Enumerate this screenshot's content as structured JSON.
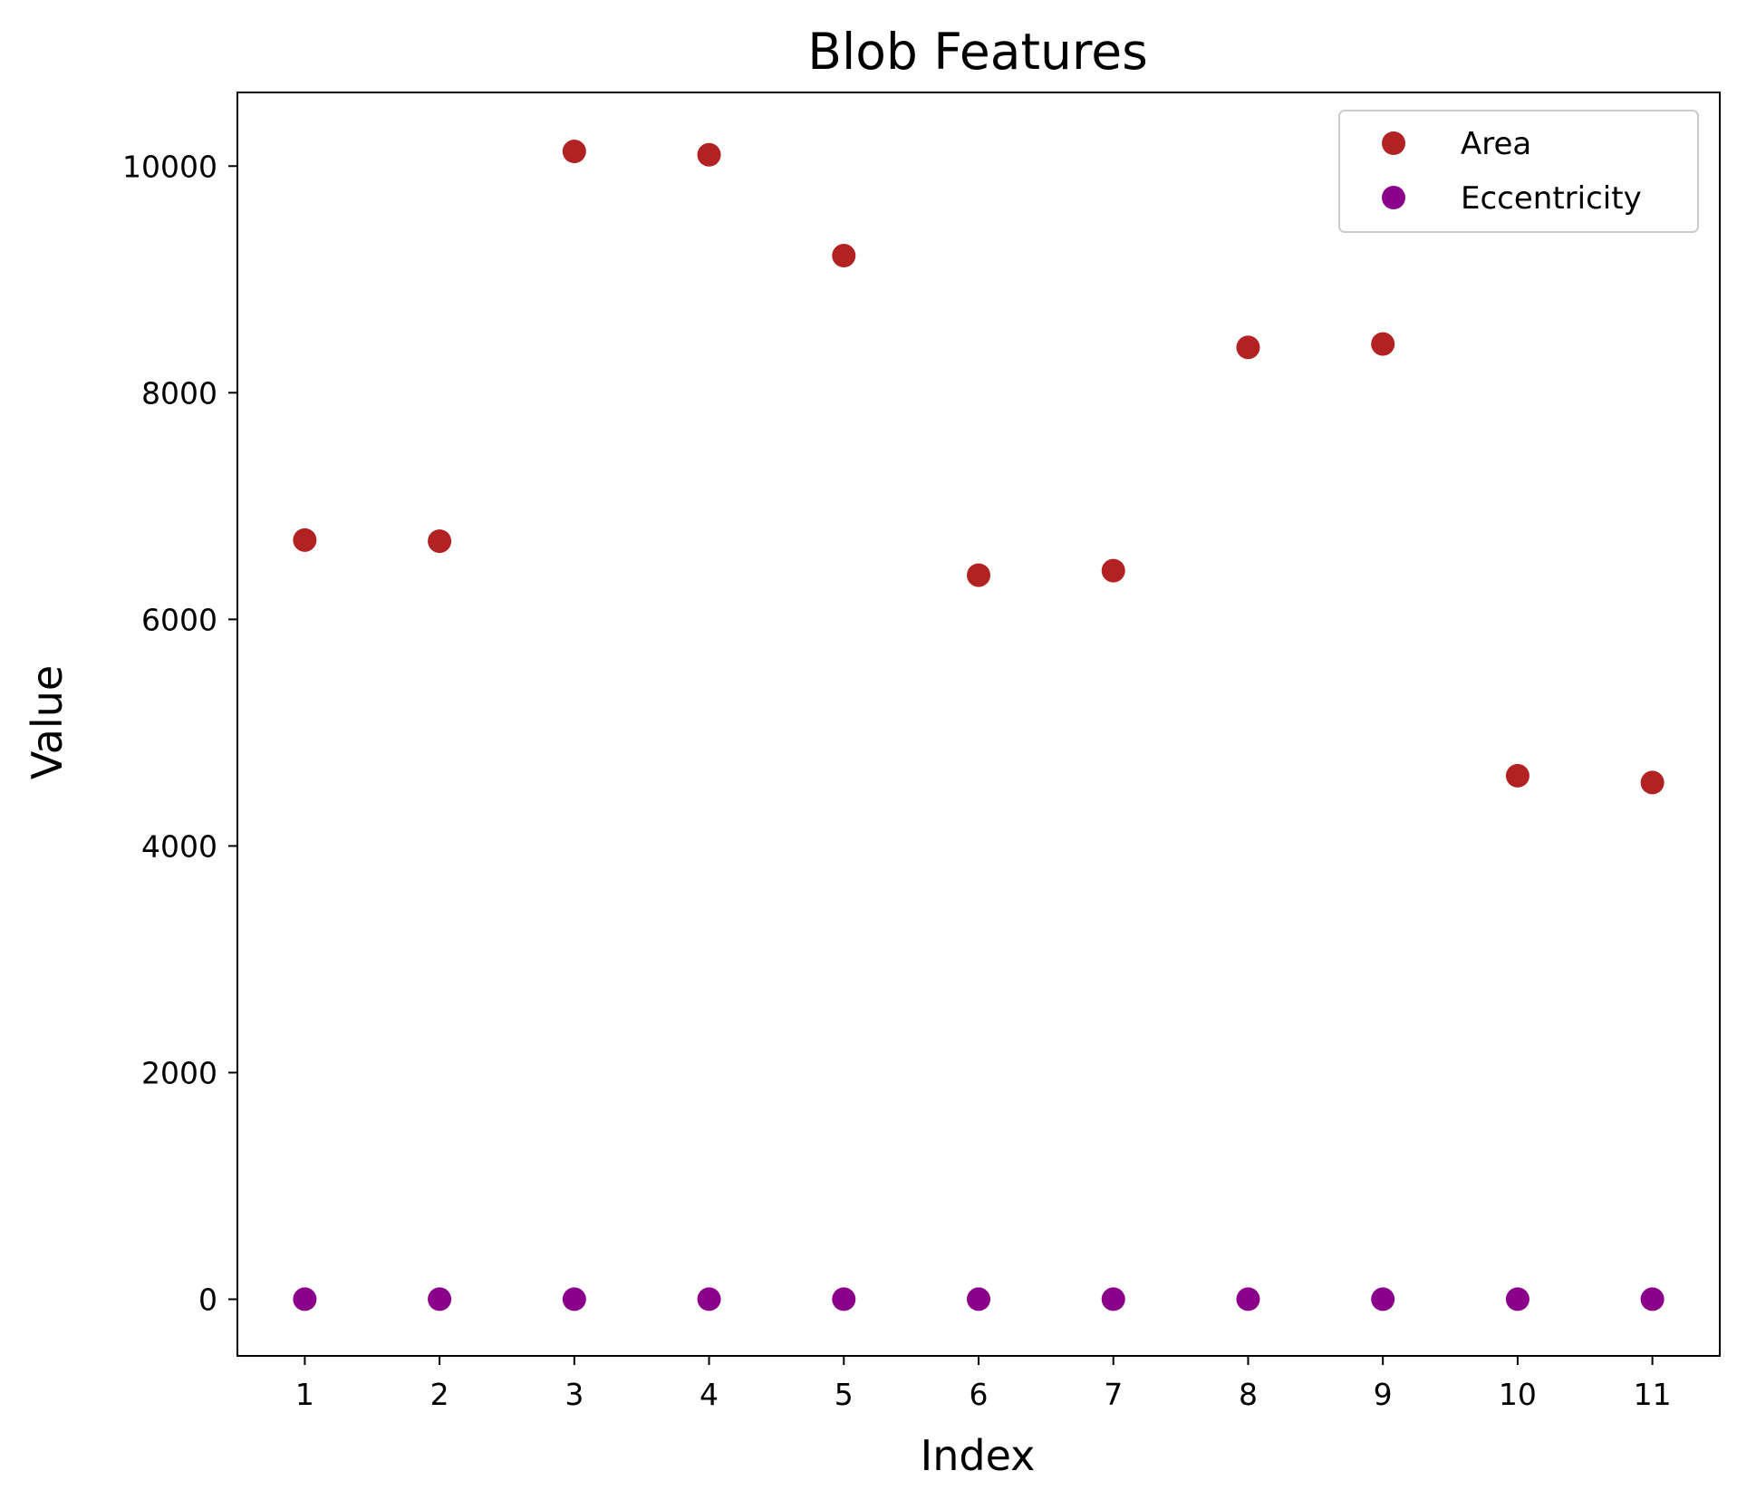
{
  "chart_data": {
    "type": "scatter",
    "title": "Blob Features",
    "xlabel": "Index",
    "ylabel": "Value",
    "x": [
      1,
      2,
      3,
      4,
      5,
      6,
      7,
      8,
      9,
      10,
      11
    ],
    "xticks": [
      1,
      2,
      3,
      4,
      5,
      6,
      7,
      8,
      9,
      10,
      11
    ],
    "yticks": [
      0,
      2000,
      4000,
      6000,
      8000,
      10000
    ],
    "xlim": [
      0.5,
      11.5
    ],
    "ylim": [
      -500,
      10650
    ],
    "grid": false,
    "legend_position": "top-right",
    "series": [
      {
        "name": "Area",
        "color": "#b22222",
        "values": [
          6700,
          6690,
          10130,
          10100,
          9210,
          6390,
          6430,
          8400,
          8430,
          4620,
          4560
        ]
      },
      {
        "name": "Eccentricity",
        "color": "#8b008b",
        "values": [
          0.6,
          0.6,
          0.5,
          0.5,
          0.6,
          0.7,
          0.7,
          0.6,
          0.6,
          0.7,
          0.7
        ]
      }
    ]
  }
}
